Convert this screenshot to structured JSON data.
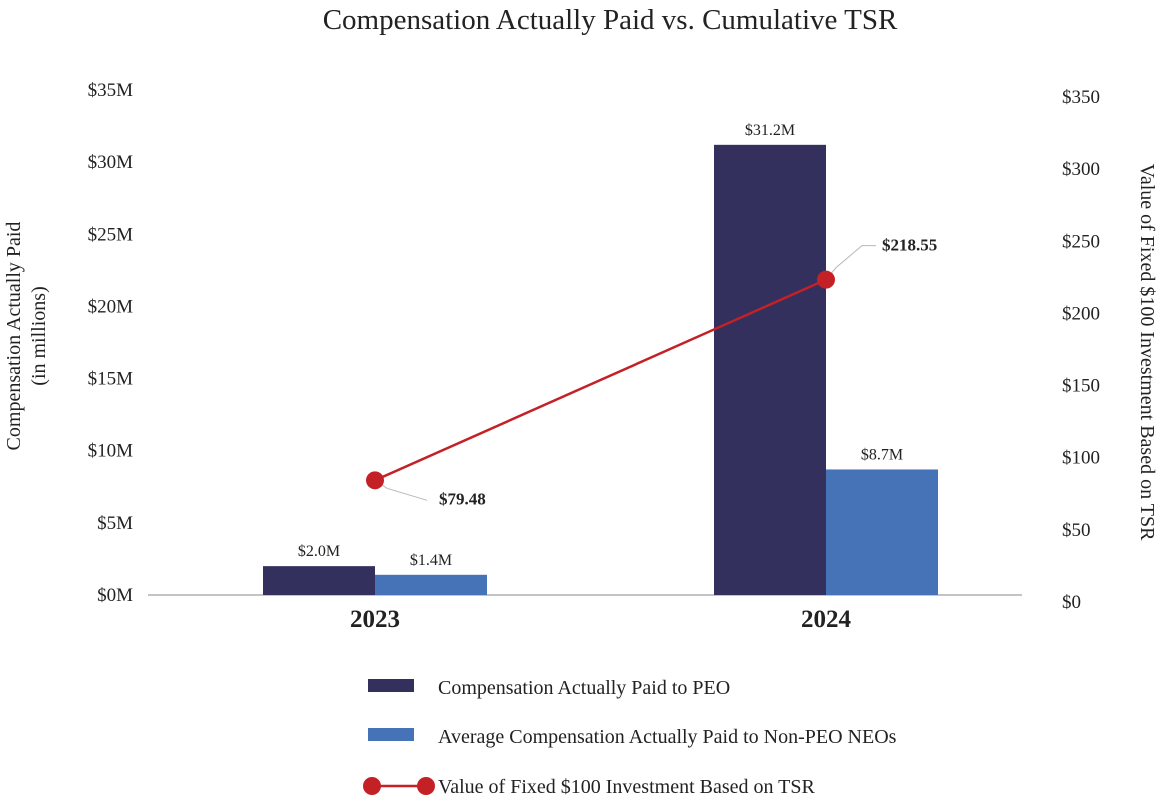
{
  "chart_data": {
    "type": "bar",
    "title": "Compensation Actually Paid vs. Cumulative TSR",
    "categories": [
      "2023",
      "2024"
    ],
    "ylabel": [
      "Compensation Actually Paid",
      "(in millions)"
    ],
    "y2label": "Value of Fixed $100 Investment Based on TSR",
    "ylim": [
      0,
      35
    ],
    "yticks": [
      0,
      5,
      10,
      15,
      20,
      25,
      30,
      35
    ],
    "ytick_labels": [
      "$0M",
      "$5M",
      "$10M",
      "$15M",
      "$20M",
      "$25M",
      "$30M",
      "$35M"
    ],
    "y2lim": [
      0,
      350
    ],
    "y2ticks": [
      0,
      50,
      100,
      150,
      200,
      250,
      300,
      350
    ],
    "y2tick_labels": [
      "$0",
      "$50",
      "$100",
      "$150",
      "$200",
      "$250",
      "$300",
      "$350"
    ],
    "series": [
      {
        "name": "Compensation Actually Paid to PEO",
        "type": "bar",
        "axis": "left",
        "color": "#33305e",
        "values": [
          2.0,
          31.2
        ],
        "labels": [
          "$2.0M",
          "$31.2M"
        ]
      },
      {
        "name": "Average Compensation Actually Paid to Non-PEO NEOs",
        "type": "bar",
        "axis": "left",
        "color": "#4672b8",
        "values": [
          1.4,
          8.7
        ],
        "labels": [
          "$1.4M",
          "$8.7M"
        ]
      },
      {
        "name": "Value of Fixed $100 Investment Based on TSR",
        "type": "line",
        "axis": "right",
        "color": "#c42127",
        "values": [
          79.48,
          218.55
        ],
        "labels": [
          "$79.48",
          "$218.55"
        ]
      }
    ],
    "grid": false,
    "legend_position": "bottom"
  }
}
